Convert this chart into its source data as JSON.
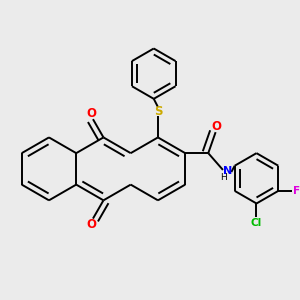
{
  "bg": "#ebebeb",
  "bond_color": "#000000",
  "lw": 1.4,
  "dbo": 0.055,
  "atom_colors": {
    "O": "#ff0000",
    "N": "#0000ff",
    "S": "#ccaa00",
    "Cl": "#00bb00",
    "F": "#dd00dd"
  },
  "fs": 7.5,
  "r_core": 0.3,
  "r_ph": 0.24
}
